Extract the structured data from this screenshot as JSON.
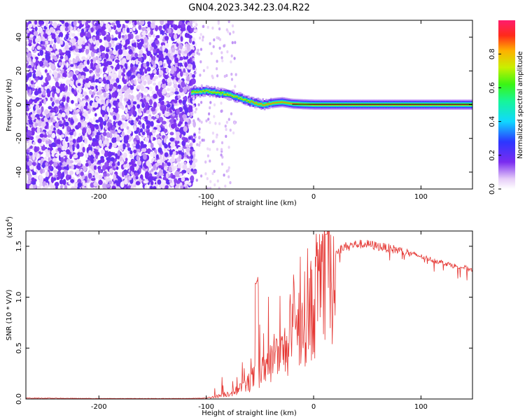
{
  "title": "GN04.2023.342.23.04.R22",
  "chart_data": [
    {
      "type": "heatmap",
      "name": "spectrogram",
      "xlabel": "Height of straight line (km)",
      "ylabel": "Frequency (Hz)",
      "xlim": [
        -268,
        148
      ],
      "ylim": [
        -50,
        50
      ],
      "xticks": [
        -200,
        -100,
        0,
        100
      ],
      "yticks": [
        -40,
        -20,
        0,
        20,
        40
      ],
      "track": {
        "x": [
          -112,
          -100,
          -90,
          -80,
          -72,
          -65,
          -58,
          -52,
          -45,
          -38,
          -30,
          -20,
          -10,
          0,
          20,
          40,
          60,
          80,
          100,
          120,
          148
        ],
        "y": [
          7.5,
          8.0,
          7.0,
          6.0,
          4.5,
          3.0,
          1.5,
          0.5,
          0.0,
          1.0,
          1.5,
          0.5,
          0.2,
          0.0,
          0.0,
          0.0,
          0.0,
          0.0,
          0.0,
          0.0,
          0.0
        ]
      },
      "colorbar": {
        "label": "Normalized spectral amplitude",
        "ticks": [
          0.0,
          0.2,
          0.4,
          0.6,
          0.8
        ],
        "range": [
          0,
          1
        ]
      }
    },
    {
      "type": "line",
      "name": "snr",
      "xlabel": "Height of straight line (km)",
      "ylabel": "SNR (10 * V/V)",
      "multiplier": "(x10",
      "multiplier_exp": "4",
      "multiplier_close": ")",
      "xlim": [
        -268,
        148
      ],
      "ylim": [
        0,
        1.65
      ],
      "xticks": [
        -200,
        -100,
        0,
        100
      ],
      "yticks": [
        0.0,
        0.5,
        1.0,
        1.5
      ],
      "ytick_labels": [
        "0.0",
        "0.5",
        "1.0",
        "1.5"
      ],
      "color": "#e53935",
      "envelope": {
        "x": [
          -268,
          -200,
          -120,
          -100,
          -90,
          -80,
          -70,
          -60,
          -55,
          -50,
          -45,
          -40,
          -35,
          -30,
          -25,
          -20,
          -15,
          -10,
          -5,
          0,
          5,
          10,
          15,
          20,
          25,
          30,
          40,
          50,
          60,
          70,
          80,
          90,
          100,
          110,
          120,
          130,
          140,
          148
        ],
        "y": [
          0.01,
          0.005,
          0.005,
          0.01,
          0.03,
          0.06,
          0.1,
          0.18,
          0.25,
          0.28,
          0.33,
          0.4,
          0.45,
          0.5,
          0.58,
          0.68,
          0.78,
          0.88,
          0.96,
          1.05,
          1.15,
          1.25,
          1.35,
          1.42,
          1.47,
          1.5,
          1.52,
          1.52,
          1.5,
          1.48,
          1.46,
          1.43,
          1.4,
          1.37,
          1.34,
          1.31,
          1.29,
          1.27
        ]
      }
    }
  ]
}
